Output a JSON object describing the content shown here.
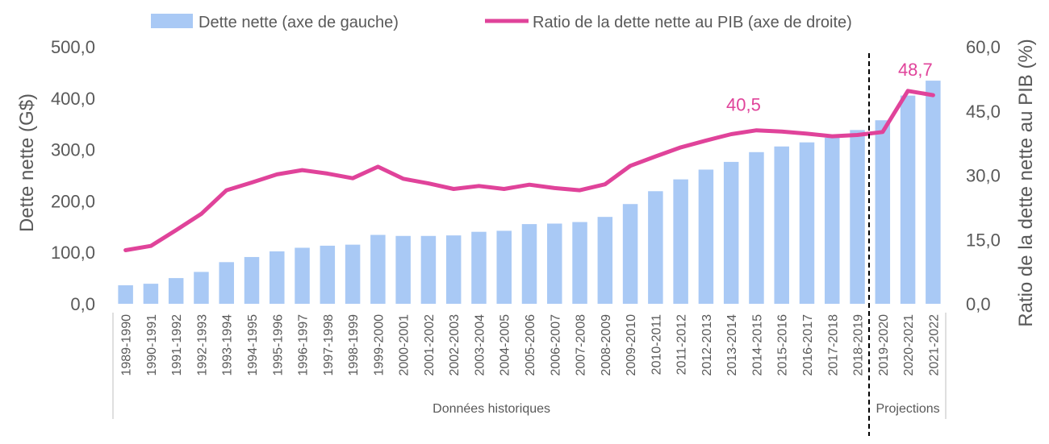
{
  "colors": {
    "bar": "#a9c9f5",
    "line": "#e0439a",
    "axis_text": "#595959",
    "group_line": "#bfbfbf",
    "divider": "#000000"
  },
  "chart_data": {
    "type": "bar+line",
    "legend": {
      "placement": "top",
      "bar_label": "Dette nette (axe de gauche)",
      "line_label": "Ratio de la dette nette au PIB (axe de droite)"
    },
    "categories": [
      "1989-1990",
      "1990-1991",
      "1991-1992",
      "1992-1993",
      "1993-1994",
      "1994-1995",
      "1995-1996",
      "1996-1997",
      "1997-1998",
      "1998-1999",
      "1999-2000",
      "2000-2001",
      "2001-2002",
      "2002-2003",
      "2003-2004",
      "2004-2005",
      "2005-2006",
      "2006-2007",
      "2007-2008",
      "2008-2009",
      "2009-2010",
      "2010-2011",
      "2011-2012",
      "2012-2013",
      "2013-2014",
      "2014-2015",
      "2015-2016",
      "2016-2017",
      "2017-2018",
      "2018-2019",
      "2019-2020",
      "2020-2021",
      "2021-2022"
    ],
    "series": [
      {
        "name": "Dette nette (axe de gauche)",
        "type": "bar",
        "axis": "left",
        "values": [
          36,
          39,
          50,
          62,
          81,
          91,
          102,
          109,
          113,
          115,
          134,
          132,
          132,
          133,
          140,
          142,
          155,
          156,
          159,
          169,
          194,
          219,
          242,
          261,
          276,
          295,
          306,
          314,
          323,
          338,
          357,
          405,
          434
        ]
      },
      {
        "name": "Ratio de la dette nette au PIB (axe de droite)",
        "type": "line",
        "axis": "right",
        "values": [
          12.5,
          13.5,
          17.2,
          21.0,
          26.5,
          28.3,
          30.2,
          31.2,
          30.4,
          29.3,
          32.0,
          29.2,
          28.1,
          26.8,
          27.5,
          26.8,
          27.8,
          27.0,
          26.5,
          27.9,
          32.2,
          34.4,
          36.5,
          38.1,
          39.6,
          40.5,
          40.2,
          39.7,
          39.1,
          39.4,
          40.1,
          49.7,
          48.7
        ]
      }
    ],
    "y_left": {
      "label": "Dette nette (G$)",
      "min": 0,
      "max": 500,
      "ticks": [
        "0,0",
        "100,0",
        "200,0",
        "300,0",
        "400,0",
        "500,0"
      ]
    },
    "y_right": {
      "label": "Ratio de la dette nette au PIB (%)",
      "min": 0,
      "max": 60,
      "ticks": [
        "0,0",
        "15,0",
        "30,0",
        "45,0",
        "60,0"
      ]
    },
    "annotations": [
      {
        "category": "2014-2015",
        "text": "40,5"
      },
      {
        "category": "2021-2022",
        "text": "48,7"
      }
    ],
    "groups": [
      {
        "label": "Données historiques",
        "from": "1989-1990",
        "to": "2018-2019"
      },
      {
        "label": "Projections",
        "from": "2019-2020",
        "to": "2021-2022"
      }
    ],
    "grid": false
  }
}
